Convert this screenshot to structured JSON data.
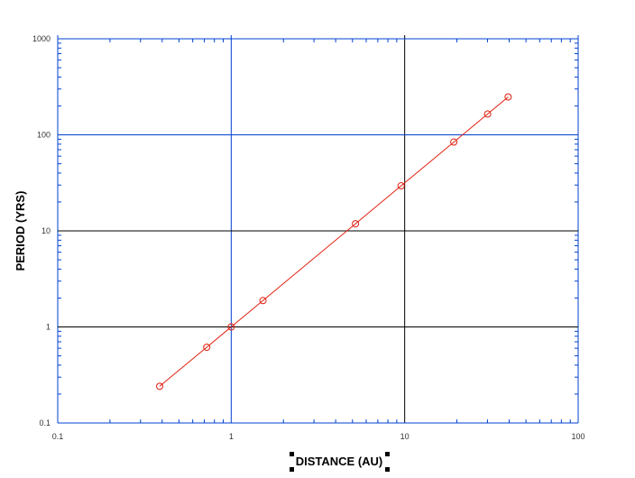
{
  "chart_data": {
    "type": "line",
    "xlabel": "DISTANCE (AU)",
    "ylabel": "PERIOD (YRS)",
    "xscale": "log",
    "yscale": "log",
    "xlim": [
      0.1,
      100
    ],
    "ylim": [
      0.1,
      1000
    ],
    "x_ticks": [
      "0.1",
      "1",
      "10",
      "100"
    ],
    "y_ticks": [
      "0.1",
      "1",
      "10",
      "100",
      "1000"
    ],
    "grid": true,
    "series": [
      {
        "color": "#e02010",
        "marker": "open-circle",
        "x": [
          0.387,
          0.723,
          1.0,
          1.524,
          5.203,
          9.537,
          19.19,
          30.07,
          39.48
        ],
        "y": [
          0.241,
          0.615,
          1.0,
          1.881,
          11.86,
          29.46,
          84.01,
          164.8,
          248.0
        ]
      }
    ],
    "colors": {
      "frame": "#0040d0",
      "grid_blue": "#0040d0",
      "grid_black": "#000000"
    }
  }
}
